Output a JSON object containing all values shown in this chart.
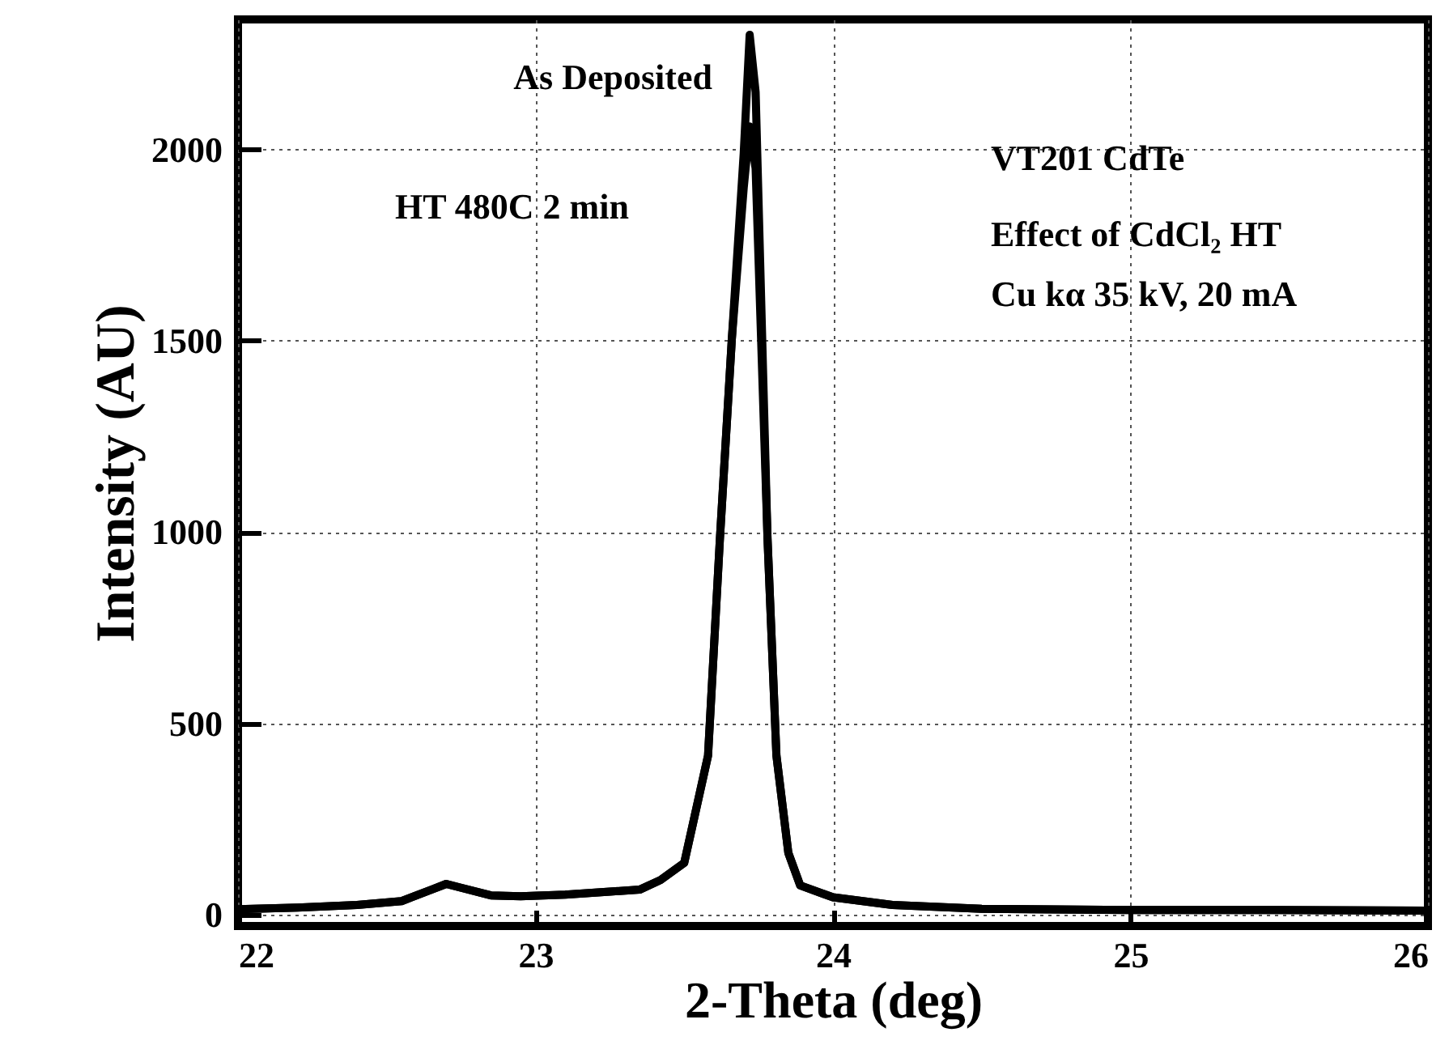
{
  "chart_data": {
    "type": "line",
    "xlabel": "2-Theta (deg)",
    "ylabel": "Intensity (AU)",
    "x": [
      22,
      22.2,
      22.4,
      22.55,
      22.65,
      22.7,
      22.75,
      22.85,
      22.95,
      23.1,
      23.25,
      23.35,
      23.42,
      23.5,
      23.58,
      23.62,
      23.66,
      23.7,
      23.72,
      23.74,
      23.78,
      23.81,
      23.85,
      23.89,
      24.0,
      24.2,
      24.5,
      25,
      25.5,
      26
    ],
    "series": [
      {
        "color": "#000000",
        "values": [
          14,
          18,
          25,
          35,
          65,
          80,
          70,
          50,
          48,
          52,
          60,
          65,
          90,
          135,
          415,
          983,
          1504,
          1990,
          2300,
          2150,
          983,
          415,
          161,
          76,
          45,
          25,
          15,
          12,
          12,
          10
        ]
      },
      {
        "color": "#000000",
        "values": [
          14,
          18,
          25,
          35,
          65,
          80,
          70,
          50,
          48,
          52,
          60,
          65,
          90,
          135,
          415,
          983,
          1504,
          1900,
          2060,
          1950,
          983,
          415,
          161,
          76,
          45,
          25,
          15,
          12,
          12,
          10
        ]
      }
    ],
    "xlim": [
      22,
      26
    ],
    "xticks": [
      22,
      23,
      24,
      25,
      26
    ],
    "ylim": [
      -30,
      2340
    ],
    "yticks": [
      0,
      500,
      1000,
      1500,
      2000
    ],
    "grid": true,
    "line_style": "solid",
    "annotations": [
      "As Deposited",
      "HT 480C 2 min",
      "VT201  CdTe",
      "Effect of CdCl₂ HT",
      "Cu kα 35 kV, 20 mA"
    ]
  }
}
